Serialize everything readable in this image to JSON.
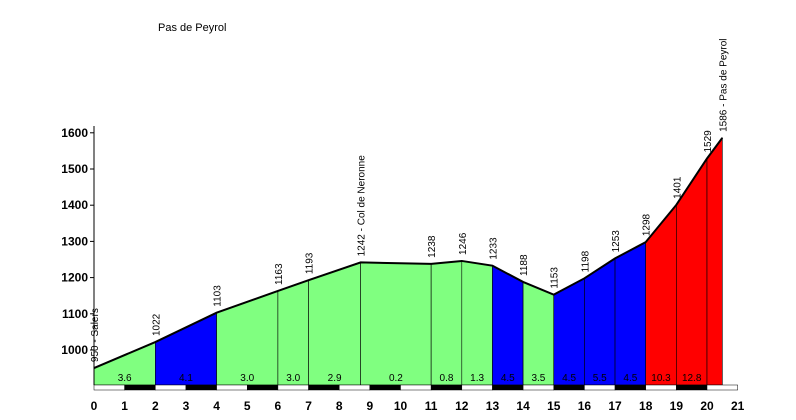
{
  "title": "Pas de Peyrol",
  "chart_data": {
    "type": "area",
    "title": "Pas de Peyrol",
    "xlabel": "",
    "ylabel": "",
    "xlim": [
      0,
      21
    ],
    "ylim": [
      900,
      1600
    ],
    "xticks": [
      "0",
      "1",
      "2",
      "3",
      "4",
      "5",
      "6",
      "7",
      "8",
      "9",
      "10",
      "11",
      "12",
      "13",
      "14",
      "15",
      "16",
      "17",
      "18",
      "19",
      "20",
      "21"
    ],
    "yticks": [
      "1000",
      "1100",
      "1200",
      "1300",
      "1400",
      "1500",
      "1600"
    ],
    "grid": false,
    "profile": [
      {
        "x": 0,
        "y": 950,
        "label": "950 - Salers"
      },
      {
        "x": 2,
        "y": 1022,
        "label": "1022"
      },
      {
        "x": 4,
        "y": 1103,
        "label": "1103"
      },
      {
        "x": 6,
        "y": 1163,
        "label": "1163"
      },
      {
        "x": 7,
        "y": 1193,
        "label": "1193"
      },
      {
        "x": 8.7,
        "y": 1242,
        "label": "1242 - Col de Neronne"
      },
      {
        "x": 11,
        "y": 1238,
        "label": "1238"
      },
      {
        "x": 12,
        "y": 1246,
        "label": "1246"
      },
      {
        "x": 13,
        "y": 1233,
        "label": "1233"
      },
      {
        "x": 14,
        "y": 1188,
        "label": "1188"
      },
      {
        "x": 15,
        "y": 1153,
        "label": "1153"
      },
      {
        "x": 16,
        "y": 1198,
        "label": "1198"
      },
      {
        "x": 17,
        "y": 1253,
        "label": "1253"
      },
      {
        "x": 18,
        "y": 1298,
        "label": "1298"
      },
      {
        "x": 19,
        "y": 1401,
        "label": "1401"
      },
      {
        "x": 20,
        "y": 1529,
        "label": "1529"
      },
      {
        "x": 20.5,
        "y": 1586,
        "label": "1586 - Pas de Peyrol"
      }
    ],
    "segments": [
      {
        "from": 0,
        "to": 2,
        "gradient": "3.6",
        "color": "#80ff80"
      },
      {
        "from": 2,
        "to": 4,
        "gradient": "4.1",
        "color": "#0000ff"
      },
      {
        "from": 4,
        "to": 6,
        "gradient": "3.0",
        "color": "#80ff80"
      },
      {
        "from": 6,
        "to": 7,
        "gradient": "3.0",
        "color": "#80ff80"
      },
      {
        "from": 7,
        "to": 8.7,
        "gradient": "2.9",
        "color": "#80ff80"
      },
      {
        "from": 8.7,
        "to": 11,
        "gradient": "0.2",
        "color": "#80ff80"
      },
      {
        "from": 11,
        "to": 12,
        "gradient": "0.8",
        "color": "#80ff80"
      },
      {
        "from": 12,
        "to": 13,
        "gradient": "1.3",
        "color": "#80ff80"
      },
      {
        "from": 13,
        "to": 14,
        "gradient": "4.5",
        "color": "#0000ff"
      },
      {
        "from": 14,
        "to": 15,
        "gradient": "3.5",
        "color": "#80ff80"
      },
      {
        "from": 15,
        "to": 16,
        "gradient": "4.5",
        "color": "#0000ff"
      },
      {
        "from": 16,
        "to": 17,
        "gradient": "5.5",
        "color": "#0000ff"
      },
      {
        "from": 17,
        "to": 18,
        "gradient": "4.5",
        "color": "#0000ff"
      },
      {
        "from": 18,
        "to": 19,
        "gradient": "10.3",
        "color": "#ff0000"
      },
      {
        "from": 19,
        "to": 20,
        "gradient": "12.8",
        "color": "#ff0000"
      },
      {
        "from": 20,
        "to": 20.5,
        "gradient": "",
        "color": "#ff0000"
      }
    ]
  }
}
